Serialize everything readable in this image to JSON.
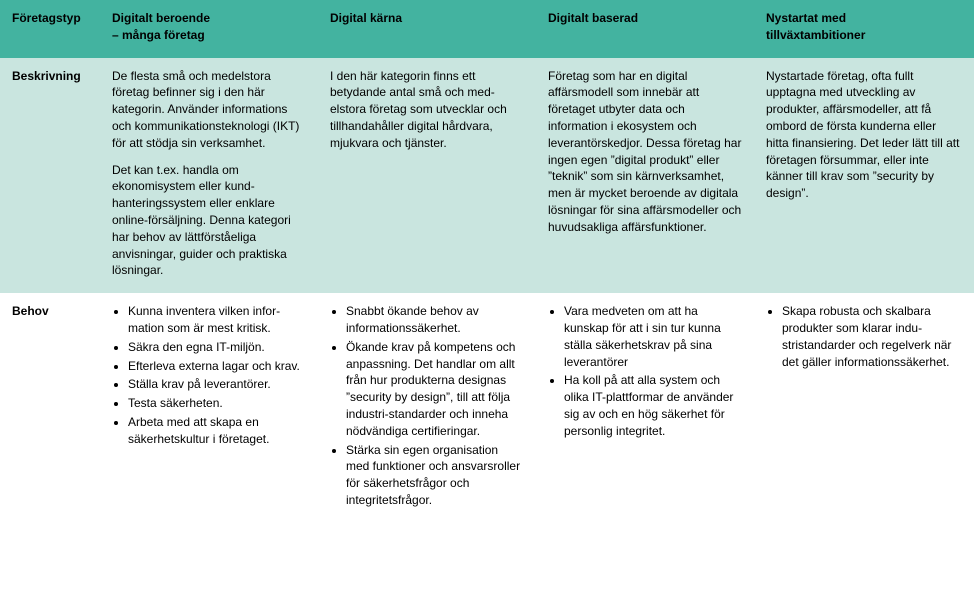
{
  "colors": {
    "header_bg": "#43b3a0",
    "row_even_bg": "#c9e5df",
    "row_odd_bg": "#ffffff",
    "text": "#000000"
  },
  "columns": [
    {
      "key": "type",
      "label": "Företagstyp"
    },
    {
      "key": "dep",
      "label": "Digitalt beroende\n– många företag"
    },
    {
      "key": "core",
      "label": "Digital kärna"
    },
    {
      "key": "based",
      "label": "Digitalt baserad"
    },
    {
      "key": "startup",
      "label": "Nystartat med\ntillväxtambitioner"
    }
  ],
  "rows": [
    {
      "label": "Beskrivning",
      "cells": {
        "dep": [
          "De flesta små och medelstora företag befinner sig i den här kategorin. Använder informa­tions och kommunikations­teknologi (IKT) för att stödja sin verksamhet.",
          "Det kan t.ex. handla om ekonomisystem eller kund­hanteringssystem eller enklare online-försäljning. Denna kategori har behov av lättför­ståeliga anvisningar, guider och praktiska lösningar."
        ],
        "core": [
          "I den här kategorin finns ett betydande antal små och med­elstora företag som utvecklar och tillhandahåller digital hårdvara, mjukvara och tjänster."
        ],
        "based": [
          "Företag som har en digital affärsmodell som innebär att företaget utbyter data och information i ekosystem och leverantörskedjor. Dessa företag har ingen egen ”digital produkt” eller ”teknik” som sin kärnverksamhet, men är mycket beroende av digitala lösningar för sina affärsmodeller och huvudsakliga affärsfunktioner."
        ],
        "startup": [
          "Nystartade företag, ofta fullt upptagna med utveckling av produkter, affärsmodeller, att få ombord de första kunderna eller hitta finansiering. Det leder lätt till att företagen försummar, eller inte känner till krav som ”security by design”."
        ]
      }
    },
    {
      "label": "Behov",
      "cells_list": {
        "dep": [
          "Kunna inventera vilken infor­mation som är mest kritisk.",
          "Säkra den egna IT-miljön.",
          "Efterleva externa lagar och krav.",
          "Ställa krav på leverantörer.",
          "Testa säkerheten.",
          "Arbeta med att skapa en säkerhetskultur i företaget."
        ],
        "core": [
          "Snabbt ökande behov av informationssäkerhet.",
          "Ökande krav på kompetens och anpassning. Det handlar om allt från hur produkterna designas ”security by design”, till att följa industri-standarder och inneha nödvändiga certifieringar.",
          "Stärka sin egen organisation med funktioner och ansvars­roller för säkerhetsfrågor och integritetsfrågor."
        ],
        "based": [
          "Vara medveten om att ha kunskap för att i sin tur kunna ställa säkerhetskrav på sina leverantörer",
          "Ha koll på att alla system och olika IT-plattformar de använder sig av och en hög säkerhet för personlig integritet."
        ],
        "startup": [
          "Skapa robusta och skalbara produkter som klarar indu­stristandarder och regelverk när det gäller informations­säkerhet."
        ]
      }
    }
  ]
}
